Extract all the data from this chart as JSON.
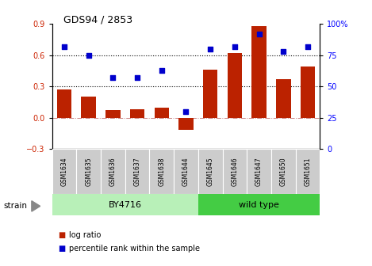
{
  "title": "GDS94 / 2853",
  "samples": [
    "GSM1634",
    "GSM1635",
    "GSM1636",
    "GSM1637",
    "GSM1638",
    "GSM1644",
    "GSM1645",
    "GSM1646",
    "GSM1647",
    "GSM1650",
    "GSM1651"
  ],
  "log_ratio": [
    0.27,
    0.2,
    0.07,
    0.08,
    0.1,
    -0.12,
    0.46,
    0.62,
    0.88,
    0.37,
    0.49
  ],
  "percentile_rank": [
    82,
    75,
    57,
    57,
    63,
    30,
    80,
    82,
    92,
    78,
    82
  ],
  "groups": [
    {
      "label": "BY4716",
      "start": 0,
      "end": 5,
      "color": "#b8f0b8"
    },
    {
      "label": "wild type",
      "start": 6,
      "end": 10,
      "color": "#44cc44"
    }
  ],
  "bar_color": "#bb2200",
  "scatter_color": "#0000cc",
  "ylim_left": [
    -0.3,
    0.9
  ],
  "ylim_right": [
    0,
    100
  ],
  "yticks_left": [
    -0.3,
    0.0,
    0.3,
    0.6,
    0.9
  ],
  "yticks_right": [
    0,
    25,
    50,
    75,
    100
  ],
  "hlines": [
    0.3,
    0.6
  ],
  "legend_items": [
    "log ratio",
    "percentile rank within the sample"
  ],
  "legend_colors": [
    "#bb2200",
    "#0000cc"
  ],
  "bg_color": "#ffffff",
  "label_bg": "#cccccc"
}
